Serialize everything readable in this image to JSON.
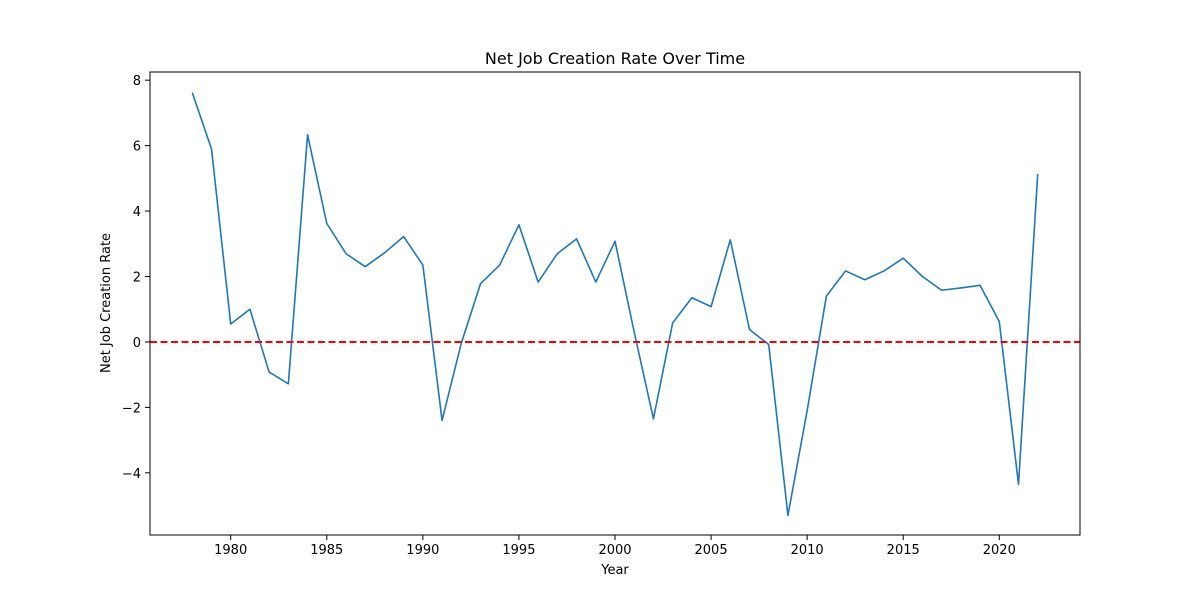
{
  "chart_data": {
    "type": "line",
    "title": "Net Job Creation Rate Over Time",
    "xlabel": "Year",
    "ylabel": "Net Job Creation Rate",
    "xlim": [
      1975.8,
      2024.2
    ],
    "ylim": [
      -5.9,
      8.25
    ],
    "xticks": [
      1980,
      1985,
      1990,
      1995,
      2000,
      2005,
      2010,
      2015,
      2020
    ],
    "yticks": [
      -4,
      -2,
      0,
      2,
      4,
      6,
      8
    ],
    "ytick_labels": [
      "−4",
      "−2",
      "0",
      "2",
      "4",
      "6",
      "8"
    ],
    "grid": false,
    "series": [
      {
        "color": "#1f77b4",
        "x": [
          1978,
          1979,
          1980,
          1981,
          1982,
          1983,
          1984,
          1985,
          1986,
          1987,
          1988,
          1989,
          1990,
          1991,
          1992,
          1993,
          1994,
          1995,
          1996,
          1997,
          1998,
          1999,
          2000,
          2001,
          2002,
          2003,
          2004,
          2005,
          2006,
          2007,
          2008,
          2009,
          2010,
          2011,
          2012,
          2013,
          2014,
          2015,
          2016,
          2017,
          2018,
          2019,
          2020,
          2021,
          2022
        ],
        "values": [
          7.62,
          5.9,
          0.55,
          1.0,
          -0.92,
          -1.28,
          6.33,
          3.62,
          2.7,
          2.3,
          2.72,
          3.22,
          2.35,
          -2.4,
          -0.04,
          1.78,
          2.35,
          3.58,
          1.83,
          2.7,
          3.15,
          1.83,
          3.08,
          0.3,
          -2.35,
          0.58,
          1.35,
          1.08,
          3.12,
          0.38,
          -0.08,
          -5.3,
          -2.1,
          1.4,
          2.17,
          1.9,
          2.17,
          2.56,
          2.0,
          1.58,
          1.65,
          1.73,
          0.62,
          -4.35,
          5.13
        ]
      }
    ],
    "reference_line": {
      "y": 0,
      "color": "#ff0000",
      "style": "dashed"
    }
  }
}
